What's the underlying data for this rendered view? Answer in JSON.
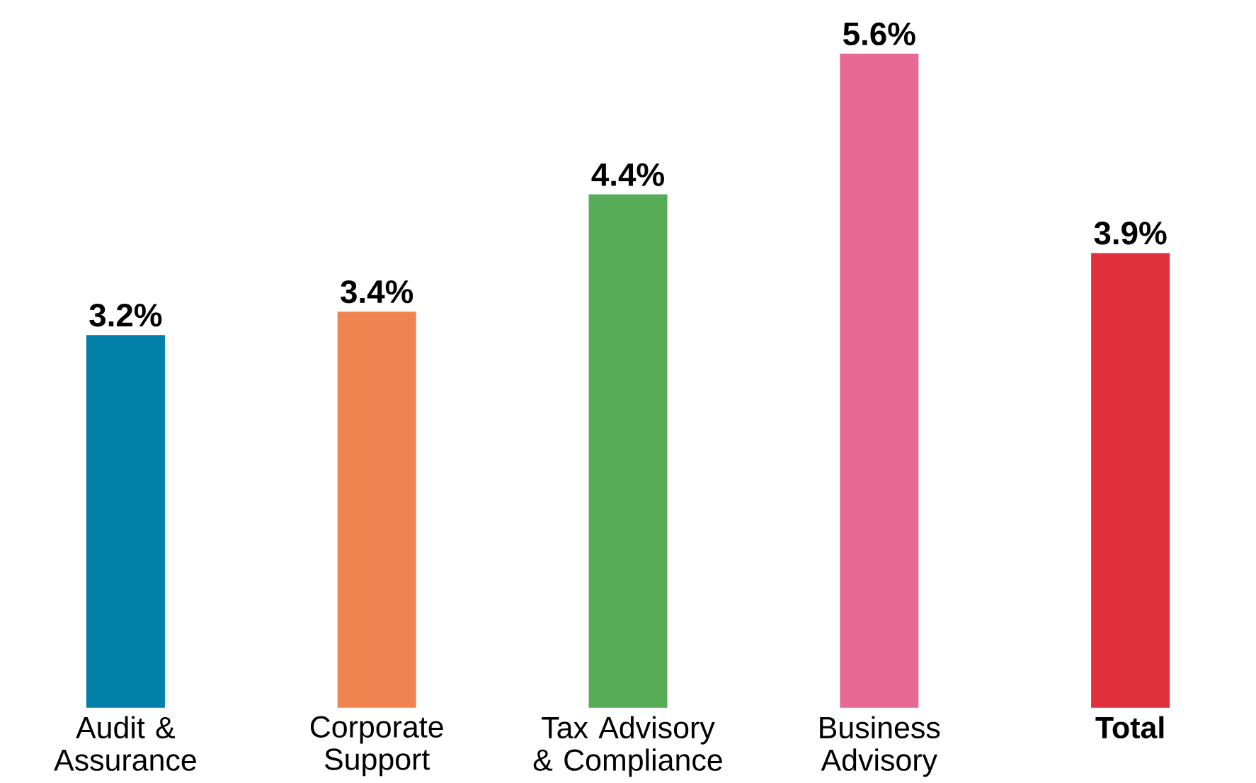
{
  "chart_data": {
    "type": "bar",
    "categories": [
      "Audit & Assurance",
      "Corporate Support",
      "Tax Advisory & Compliance",
      "Business Advisory",
      "Total"
    ],
    "values": [
      3.2,
      3.4,
      4.4,
      5.6,
      3.9
    ],
    "colors": [
      "#0080a8",
      "#f08450",
      "#58ac58",
      "#e86894",
      "#e0303c"
    ],
    "value_labels": [
      "3.2%",
      "3.4%",
      "4.4%",
      "5.6%",
      "3.9%"
    ]
  }
}
